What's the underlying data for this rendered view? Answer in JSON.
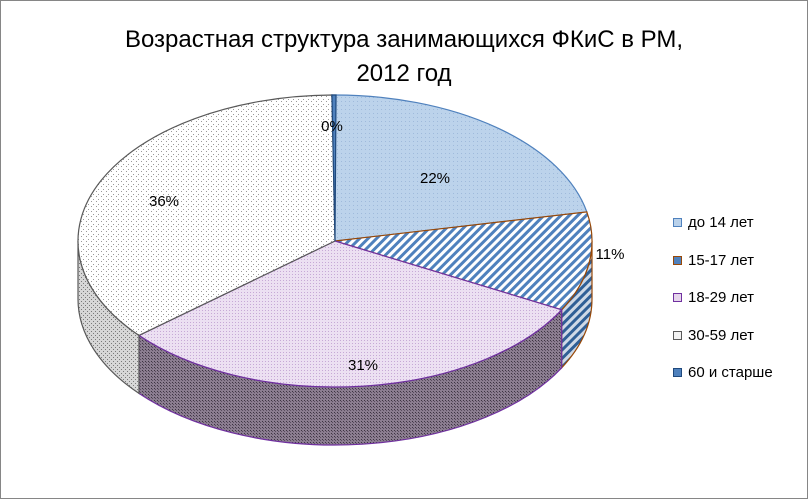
{
  "chart_data": {
    "type": "pie",
    "title_lines": [
      "Возрастная структура занимающихся ФКиС в РМ,",
      "2012 год"
    ],
    "categories": [
      "до 14 лет",
      "15-17 лет",
      "18-29 лет",
      "30-59 лет",
      "60 и старше"
    ],
    "values": [
      22,
      11,
      31,
      36,
      0
    ],
    "data_labels": [
      "22%",
      "11%",
      "31%",
      "36%",
      "0%"
    ],
    "colors": [
      "#b9d1ea",
      "#4f81bd",
      "#e6d6ec",
      "#f2f2f2",
      "#4f81bd"
    ],
    "edge_colors": [
      "#4f81bd",
      "#984807",
      "#7030a0",
      "#595959",
      "#1f497d"
    ],
    "legend_position": "right",
    "three_d": true
  }
}
